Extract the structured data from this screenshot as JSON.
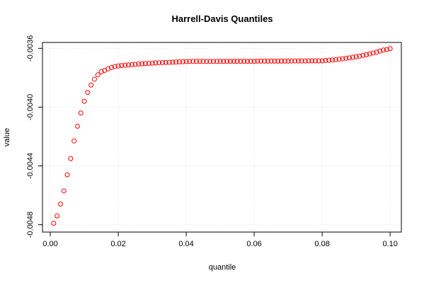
{
  "chart_data": {
    "type": "scatter",
    "title": "Harrell-Davis Quantiles",
    "x_label": "quantile",
    "y_label": "value",
    "series": [
      {
        "name": "value",
        "color": "#ff0000",
        "x": [
          0.001,
          0.002,
          0.003,
          0.004,
          0.005,
          0.006,
          0.007,
          0.008,
          0.009,
          0.01,
          0.011,
          0.012,
          0.013,
          0.014,
          0.015,
          0.016,
          0.017,
          0.018,
          0.019,
          0.02,
          0.021,
          0.022,
          0.023,
          0.024,
          0.025,
          0.026,
          0.027,
          0.028,
          0.029,
          0.03,
          0.031,
          0.032,
          0.033,
          0.034,
          0.035,
          0.036,
          0.037,
          0.038,
          0.039,
          0.04,
          0.041,
          0.042,
          0.043,
          0.044,
          0.045,
          0.046,
          0.047,
          0.048,
          0.049,
          0.05,
          0.051,
          0.052,
          0.053,
          0.054,
          0.055,
          0.056,
          0.057,
          0.058,
          0.059,
          0.06,
          0.061,
          0.062,
          0.063,
          0.064,
          0.065,
          0.066,
          0.067,
          0.068,
          0.069,
          0.07,
          0.071,
          0.072,
          0.073,
          0.074,
          0.075,
          0.076,
          0.077,
          0.078,
          0.079,
          0.08,
          0.081,
          0.082,
          0.083,
          0.084,
          0.085,
          0.086,
          0.087,
          0.088,
          0.089,
          0.09,
          0.091,
          0.092,
          0.093,
          0.094,
          0.095,
          0.096,
          0.097,
          0.098,
          0.099,
          0.1
        ],
        "values": [
          -0.00479,
          -0.00474,
          -0.00466,
          -0.00457,
          -0.00446,
          -0.00435,
          -0.00423,
          -0.00413,
          -0.00404,
          -0.00396,
          -0.0039,
          -0.00385,
          -0.00381,
          -0.00378,
          -0.00376,
          -0.00375,
          -0.00374,
          -0.00373,
          -0.003724,
          -0.00372,
          -0.003717,
          -0.003715,
          -0.003713,
          -0.003711,
          -0.003709,
          -0.003707,
          -0.003705,
          -0.003704,
          -0.003702,
          -0.003701,
          -0.003699,
          -0.003698,
          -0.003697,
          -0.003696,
          -0.003695,
          -0.003694,
          -0.003693,
          -0.003692,
          -0.003691,
          -0.00369,
          -0.003689,
          -0.003689,
          -0.003689,
          -0.003689,
          -0.003689,
          -0.003689,
          -0.003689,
          -0.003689,
          -0.003689,
          -0.003689,
          -0.003688,
          -0.003688,
          -0.003688,
          -0.003688,
          -0.003688,
          -0.003688,
          -0.003688,
          -0.003688,
          -0.003688,
          -0.003688,
          -0.003687,
          -0.003687,
          -0.003687,
          -0.003687,
          -0.003687,
          -0.003687,
          -0.003687,
          -0.003687,
          -0.003687,
          -0.003687,
          -0.003686,
          -0.003686,
          -0.003686,
          -0.003686,
          -0.003686,
          -0.003685,
          -0.003685,
          -0.003685,
          -0.003685,
          -0.003685,
          -0.003683,
          -0.003681,
          -0.003679,
          -0.003677,
          -0.003674,
          -0.003671,
          -0.003668,
          -0.003665,
          -0.003661,
          -0.003657,
          -0.003653,
          -0.003648,
          -0.003643,
          -0.003638,
          -0.003632,
          -0.003626,
          -0.003619,
          -0.003612,
          -0.003608,
          -0.003602
        ]
      }
    ],
    "xlim": [
      -0.0023,
      0.1033
    ],
    "ylim": [
      -0.00485,
      -0.00356
    ],
    "xticks": [
      {
        "value": 0,
        "label": "0.00"
      },
      0.02,
      0.04,
      0.06,
      0.08,
      {
        "value": 0.1,
        "label": "0.10"
      }
    ],
    "yticks": [
      -0.0036,
      {
        "value": -0.004,
        "label": "-0.0040"
      },
      -0.0044,
      -0.0048
    ],
    "grid": true
  }
}
